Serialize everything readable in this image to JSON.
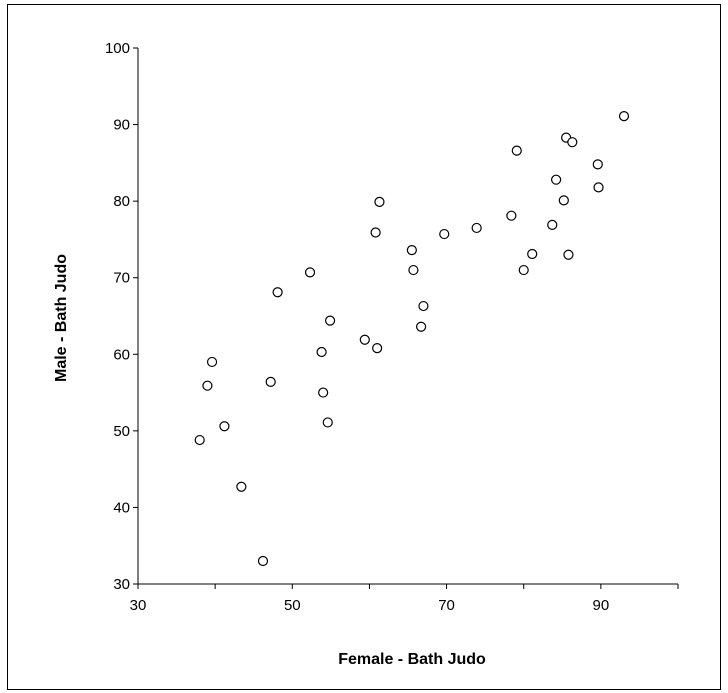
{
  "chart_data": {
    "type": "scatter",
    "title": "",
    "xlabel": "Female - Bath Judo",
    "ylabel": "Male - Bath Judo",
    "xlim": [
      30,
      100
    ],
    "ylim": [
      30,
      100
    ],
    "x_ticks": [
      30,
      50,
      70,
      90
    ],
    "y_ticks": [
      30,
      40,
      50,
      60,
      70,
      80,
      90,
      100
    ],
    "grid": false,
    "legend": "none",
    "marker": "open-circle",
    "points": [
      {
        "x": 38.0,
        "y": 48.8
      },
      {
        "x": 39.0,
        "y": 55.9
      },
      {
        "x": 39.6,
        "y": 59.0
      },
      {
        "x": 41.2,
        "y": 50.6
      },
      {
        "x": 43.4,
        "y": 42.7
      },
      {
        "x": 46.2,
        "y": 33.0
      },
      {
        "x": 47.2,
        "y": 56.4
      },
      {
        "x": 48.1,
        "y": 68.1
      },
      {
        "x": 52.3,
        "y": 70.7
      },
      {
        "x": 53.8,
        "y": 60.3
      },
      {
        "x": 54.0,
        "y": 55.0
      },
      {
        "x": 54.6,
        "y": 51.1
      },
      {
        "x": 54.9,
        "y": 64.4
      },
      {
        "x": 59.4,
        "y": 61.9
      },
      {
        "x": 60.8,
        "y": 75.9
      },
      {
        "x": 61.0,
        "y": 60.8
      },
      {
        "x": 61.3,
        "y": 79.9
      },
      {
        "x": 65.5,
        "y": 73.6
      },
      {
        "x": 65.7,
        "y": 71.0
      },
      {
        "x": 66.7,
        "y": 63.6
      },
      {
        "x": 67.0,
        "y": 66.3
      },
      {
        "x": 69.7,
        "y": 75.7
      },
      {
        "x": 73.9,
        "y": 76.5
      },
      {
        "x": 78.4,
        "y": 78.1
      },
      {
        "x": 79.1,
        "y": 86.6
      },
      {
        "x": 80.0,
        "y": 71.0
      },
      {
        "x": 81.1,
        "y": 73.1
      },
      {
        "x": 83.7,
        "y": 76.9
      },
      {
        "x": 84.2,
        "y": 82.8
      },
      {
        "x": 85.2,
        "y": 80.1
      },
      {
        "x": 85.5,
        "y": 88.3
      },
      {
        "x": 85.8,
        "y": 73.0
      },
      {
        "x": 86.3,
        "y": 87.7
      },
      {
        "x": 89.6,
        "y": 84.8
      },
      {
        "x": 89.7,
        "y": 81.8
      },
      {
        "x": 93.0,
        "y": 91.1
      }
    ]
  }
}
